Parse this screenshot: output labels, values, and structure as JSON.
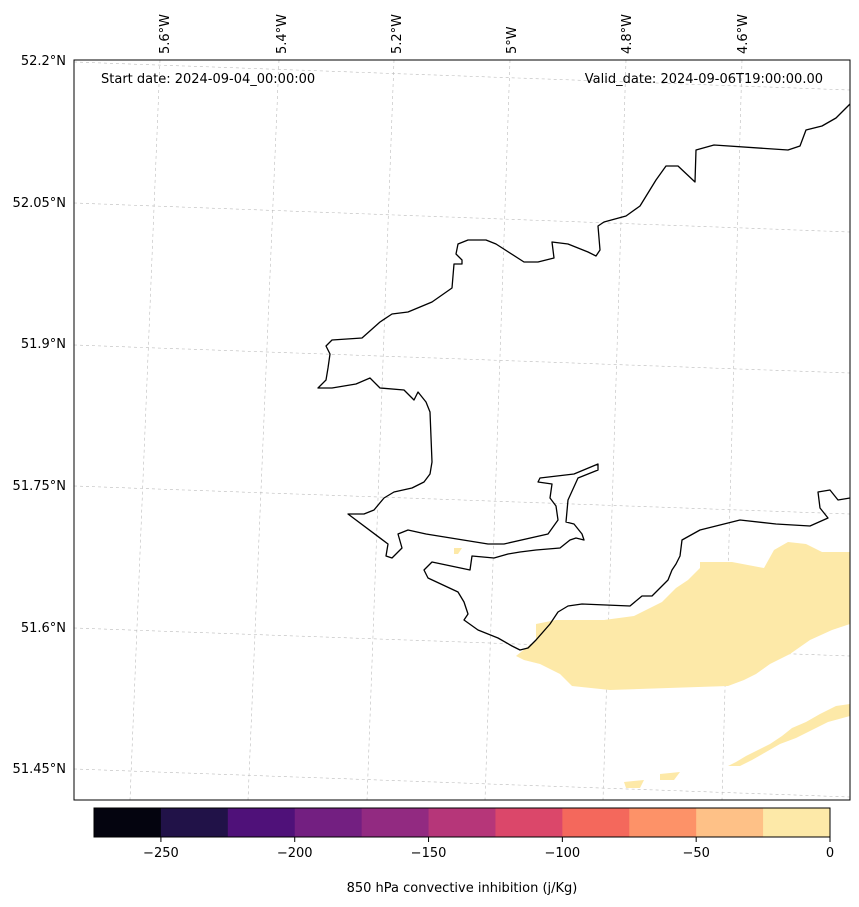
{
  "map": {
    "start_date_text": "Start date: 2024-09-04_00:00:00",
    "valid_date_text": "Valid_date: 2024-09-06T19:00:00.00",
    "lon_labels": [
      "5.6°W",
      "5.4°W",
      "5.2°W",
      "5°W",
      "4.8°W",
      "4.6°W"
    ],
    "lat_labels": [
      "52.2°N",
      "52.05°N",
      "51.9°N",
      "51.75°N",
      "51.6°N",
      "51.45°N"
    ],
    "gridlines": true,
    "coastline_color": "#000000",
    "field_color": "#fde9a8"
  },
  "colorbar": {
    "label": "850 hPa convective inhibition (j/Kg)",
    "tick_labels": [
      "−250",
      "−200",
      "−150",
      "−100",
      "−50",
      "0"
    ],
    "tick_values": [
      -250,
      -200,
      -150,
      -100,
      -50,
      0
    ],
    "range": [
      -275,
      0
    ],
    "colors": [
      "#04040f",
      "#211248",
      "#4f1179",
      "#731f81",
      "#922a81",
      "#b63679",
      "#db476a",
      "#f4685c",
      "#fd9268",
      "#fec187",
      "#fde9a8"
    ]
  }
}
